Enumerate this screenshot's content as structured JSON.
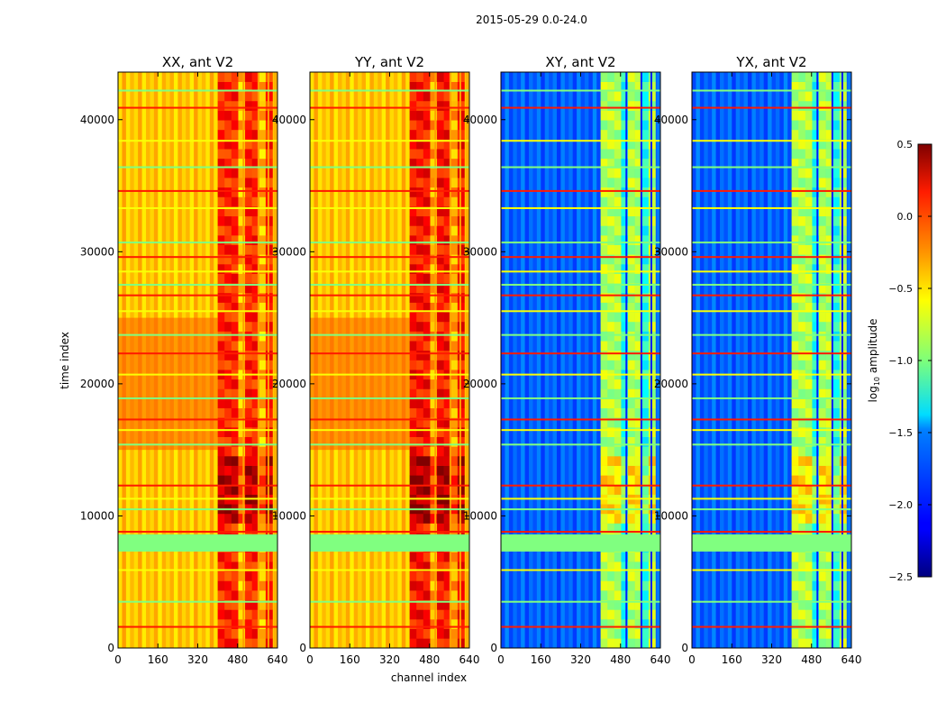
{
  "figure": {
    "suptitle": "2015-05-29 0.0-24.0",
    "xlabel": "channel index",
    "ylabel": "time index",
    "colorbar_label": "log10 amplitude"
  },
  "chart_data": {
    "type": "heatmap",
    "colormap": "jet",
    "x_range": [
      0,
      640
    ],
    "y_range": [
      0,
      43600
    ],
    "x_ticks": [
      0,
      160,
      320,
      480,
      640
    ],
    "y_ticks": [
      0,
      10000,
      20000,
      30000,
      40000
    ],
    "panels": [
      {
        "title": "XX, ant V2",
        "product": "XX",
        "base_level": 0.68,
        "rfi_level": 0.84
      },
      {
        "title": "YY, ant V2",
        "product": "YY",
        "base_level": 0.68,
        "rfi_level": 0.86
      },
      {
        "title": "XY, ant V2",
        "product": "XY",
        "base_level": 0.22,
        "rfi_level": 0.55
      },
      {
        "title": "YX, ant V2",
        "product": "YX",
        "base_level": 0.22,
        "rfi_level": 0.55
      }
    ],
    "rfi_channel_range": [
      400,
      620
    ],
    "colorbar": {
      "vmin": -2.5,
      "vmax": 0.5,
      "ticks": [
        0.5,
        0.0,
        -0.5,
        -1.0,
        -1.5,
        -2.0,
        -2.5
      ],
      "tick_labels": [
        "0.5",
        "0.0",
        "−0.5",
        "−1.0",
        "−1.5",
        "−2.0",
        "−2.5"
      ]
    },
    "flagged_time_band": [
      7300,
      8600
    ],
    "horizontal_lines_time": [
      1600,
      3500,
      5900,
      8800,
      10500,
      11300,
      12300,
      15400,
      16500,
      17300,
      18900,
      20700,
      22300,
      23700,
      25500,
      26700,
      27500,
      28500,
      29600,
      30700,
      33300,
      34600,
      36400,
      38400,
      40900,
      42200
    ]
  }
}
